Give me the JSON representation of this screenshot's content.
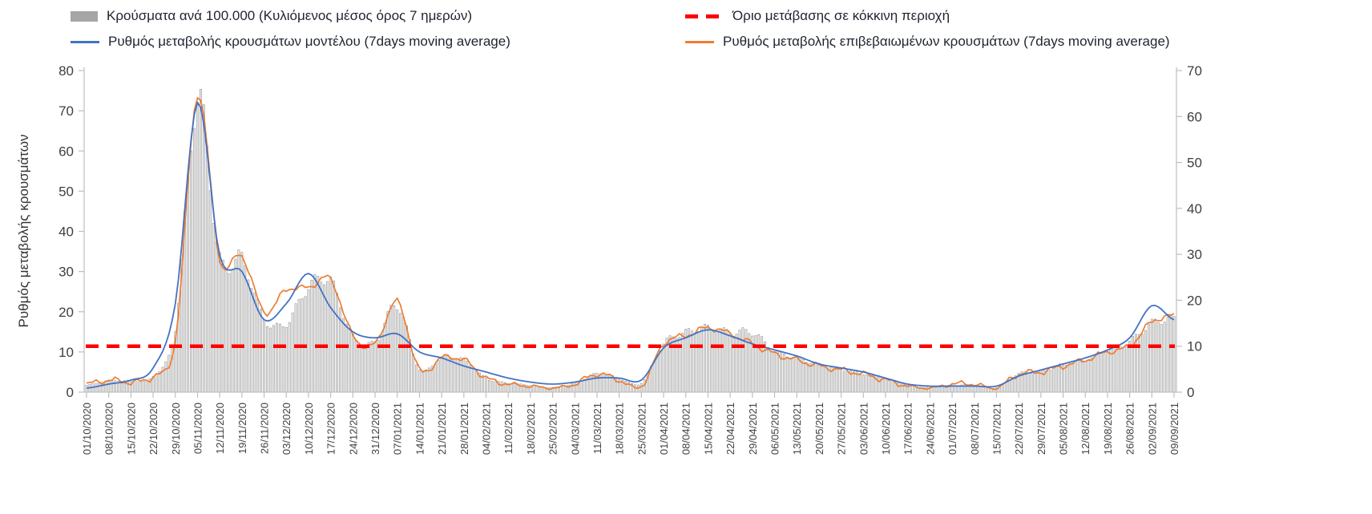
{
  "chart_data": {
    "type": "bar+line",
    "title": "",
    "ylabel_left": "Ρυθμός μεταβολής κρουσμάτων",
    "y_left": {
      "min": 0,
      "max": 80,
      "ticks": [
        0,
        10,
        20,
        30,
        40,
        50,
        60,
        70,
        80
      ]
    },
    "y_right": {
      "min": 0,
      "max": 70,
      "ticks": [
        0,
        10,
        20,
        30,
        40,
        50,
        60,
        70
      ]
    },
    "x_weekly_labels": [
      "01/10/2020",
      "08/10/2020",
      "15/10/2020",
      "22/10/2020",
      "29/10/2020",
      "05/11/2020",
      "12/11/2020",
      "19/11/2020",
      "26/11/2020",
      "03/12/2020",
      "10/12/2020",
      "17/12/2020",
      "24/12/2020",
      "31/12/2020",
      "07/01/2021",
      "14/01/2021",
      "21/01/2021",
      "28/01/2021",
      "04/02/2021",
      "11/02/2021",
      "18/02/2021",
      "25/02/2021",
      "04/03/2021",
      "11/03/2021",
      "18/03/2021",
      "25/03/2021",
      "01/04/2021",
      "08/04/2021",
      "15/04/2021",
      "22/04/2021",
      "29/04/2021",
      "06/05/2021",
      "13/05/2021",
      "20/05/2021",
      "27/05/2021",
      "03/06/2021",
      "10/06/2021",
      "17/06/2021",
      "24/06/2021",
      "01/07/2021",
      "08/07/2021",
      "15/07/2021",
      "22/07/2021",
      "29/07/2021",
      "05/08/2021",
      "12/08/2021",
      "19/08/2021",
      "26/08/2021",
      "02/09/2021",
      "09/09/2021"
    ],
    "threshold": {
      "name": "Όριο μετάβασης σε κόκκινη περιοχή",
      "value": 10,
      "axis": "right",
      "color": "#FF0000",
      "style": "dashed"
    },
    "series": [
      {
        "name": "Κρούσματα ανά 100.000 (Κυλιόμενος μέσος όρος 7 ημερών)",
        "type": "bar",
        "axis": "right",
        "color": "#A6A6A6",
        "values": [
          1.5,
          2.5,
          2.5,
          3.5,
          14,
          64,
          29,
          29,
          16,
          15,
          23,
          24,
          12,
          11,
          19,
          5,
          7.5,
          7,
          3,
          2,
          1.5,
          1,
          2,
          4,
          3,
          2,
          10.5,
          13,
          14,
          13,
          13,
          9,
          7.5,
          6,
          5,
          4,
          3,
          1.5,
          1,
          1.5,
          1.5,
          1,
          4,
          4.5,
          6,
          7,
          9,
          11,
          15,
          16
        ]
      },
      {
        "name": "Ρυθμός μεταβολής κρουσμάτων μοντέλου (7days moving average)",
        "type": "line",
        "axis": "left",
        "color": "#4472C4",
        "values": [
          1,
          2,
          3,
          6,
          22,
          72,
          34,
          30,
          18,
          22,
          29.5,
          21,
          15,
          13.5,
          14.5,
          10,
          8.5,
          6.5,
          5,
          3.5,
          2.5,
          2,
          2.5,
          3.5,
          3.5,
          3,
          11,
          13.5,
          15.5,
          14,
          12,
          10.5,
          9,
          7,
          6,
          5,
          3.5,
          2,
          1.5,
          1.5,
          1.5,
          1.5,
          4,
          5.5,
          7,
          8.5,
          10.5,
          13.5,
          21.5,
          18
        ]
      },
      {
        "name": "Ρυθμός μεταβολής επιβεβαιωμένων κρουσμάτων (7days moving average)",
        "type": "line",
        "axis": "left",
        "color": "#ED7D31",
        "values": [
          2,
          3,
          2.5,
          4,
          13,
          74,
          33,
          34,
          20,
          25.5,
          26,
          28,
          14,
          12,
          22.5,
          5.5,
          8.5,
          8,
          3.5,
          2,
          1.5,
          1,
          2,
          4.5,
          3,
          1.5,
          12,
          14,
          16,
          14.5,
          12,
          9.5,
          8,
          6.5,
          5.5,
          4.5,
          3,
          1.5,
          1,
          2,
          2,
          1,
          4.5,
          5,
          6.5,
          8,
          10,
          11.5,
          17.5,
          19
        ]
      }
    ],
    "sampling_note": "series values are weekly estimates at x_weekly_labels; the figure shows daily 7-day moving averages",
    "legend_position": "top",
    "grid": false
  }
}
